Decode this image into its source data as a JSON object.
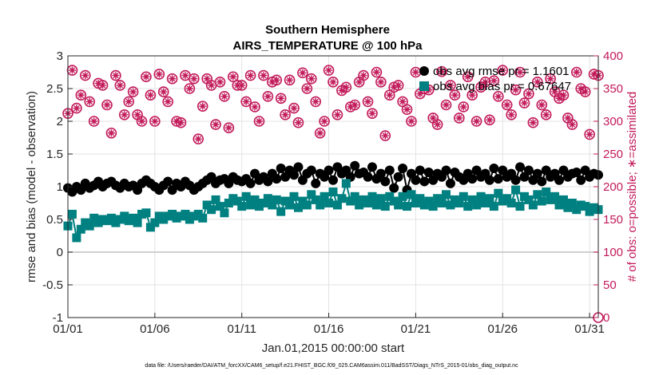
{
  "chart_data": {
    "type": "line",
    "title": "Southern Hemisphere",
    "subtitle": "AIRS_TEMPERATURE @ 100 hPa",
    "xlabel": "Jan.01,2015 00:00:00 start",
    "ylabel_left": "rmse and bias (model - observation)",
    "ylabel_right": "# of obs: o=possible; ∗=assimilated",
    "footnote": "data file: /Users/raeder/DAI/ATM_forcXX/CAM6_setup/f.e21.FHIST_BGC.f09_025.CAM6assim.011/BadSST/Diags_NTrS_2015-01/obs_diag_output.nc",
    "x_ticks": [
      "01/01",
      "01/06",
      "01/11",
      "01/16",
      "01/21",
      "01/26",
      "01/31"
    ],
    "x_tick_days": [
      0,
      5,
      10,
      15,
      20,
      25,
      30
    ],
    "xlim_days": [
      0,
      30.5
    ],
    "ylim_left": [
      -1,
      3
    ],
    "y_ticks_left": [
      "-1",
      "-0.5",
      "0",
      "0.5",
      "1",
      "1.5",
      "2",
      "2.5",
      "3"
    ],
    "ylim_right": [
      0,
      400
    ],
    "y_ticks_right": [
      "0",
      "50",
      "100",
      "150",
      "200",
      "250",
      "300",
      "350",
      "400"
    ],
    "grid": true,
    "legend_position": "top-right",
    "colors": {
      "rmse": "#000000",
      "bias": "#008080",
      "obs": "#c21a5a",
      "grid": "#e3e3e3",
      "zero_line": "#bfbfbf"
    },
    "series": [
      {
        "name": "obs avg rmse pr = 1.1601",
        "marker": "circle",
        "x_days": [
          0,
          0.25,
          0.5,
          0.75,
          1,
          1.25,
          1.5,
          1.75,
          2,
          2.25,
          2.5,
          2.75,
          3,
          3.25,
          3.5,
          3.75,
          4,
          4.25,
          4.5,
          4.75,
          5,
          5.25,
          5.5,
          5.75,
          6,
          6.25,
          6.5,
          6.75,
          7,
          7.25,
          7.5,
          7.75,
          8,
          8.25,
          8.5,
          8.75,
          9,
          9.25,
          9.5,
          9.75,
          10,
          10.25,
          10.5,
          10.75,
          11,
          11.25,
          11.5,
          11.75,
          12,
          12.25,
          12.5,
          12.75,
          13,
          13.25,
          13.5,
          13.75,
          14,
          14.25,
          14.5,
          14.75,
          15,
          15.25,
          15.5,
          15.75,
          16,
          16.25,
          16.5,
          16.75,
          17,
          17.25,
          17.5,
          17.75,
          18,
          18.25,
          18.5,
          18.75,
          19,
          19.25,
          19.5,
          19.75,
          20,
          20.25,
          20.5,
          20.75,
          21,
          21.25,
          21.5,
          21.75,
          22,
          22.25,
          22.5,
          22.75,
          23,
          23.25,
          23.5,
          23.75,
          24,
          24.25,
          24.5,
          24.75,
          25,
          25.25,
          25.5,
          25.75,
          26,
          26.25,
          26.5,
          26.75,
          27,
          27.25,
          27.5,
          27.75,
          28,
          28.25,
          28.5,
          28.75,
          29,
          29.25,
          29.5,
          29.75,
          30,
          30.25,
          30.5
        ],
        "values": [
          0.98,
          0.92,
          1.0,
          0.95,
          1.05,
          0.98,
          1.02,
          1.08,
          1.0,
          1.05,
          1.08,
          1.02,
          0.98,
          1.05,
          1.0,
          1.02,
          0.95,
          1.05,
          1.1,
          1.05,
          1.0,
          0.95,
          1.02,
          1.08,
          0.95,
          1.05,
          1.0,
          1.08,
          1.02,
          0.95,
          1.0,
          1.05,
          1.1,
          1.15,
          1.05,
          1.1,
          1.12,
          1.05,
          1.15,
          1.1,
          1.08,
          1.12,
          1.05,
          1.2,
          1.1,
          1.15,
          1.08,
          1.2,
          1.12,
          1.28,
          1.15,
          1.25,
          1.18,
          1.3,
          1.1,
          1.2,
          1.25,
          1.05,
          1.2,
          1.15,
          1.25,
          1.1,
          1.3,
          1.2,
          1.25,
          1.15,
          1.32,
          1.2,
          1.22,
          1.15,
          1.3,
          1.12,
          1.2,
          1.08,
          1.25,
          0.98,
          1.15,
          1.28,
          0.95,
          1.2,
          1.1,
          1.25,
          1.08,
          1.22,
          1.1,
          1.2,
          1.15,
          1.25,
          1.05,
          1.22,
          1.15,
          1.1,
          1.2,
          1.12,
          1.25,
          1.15,
          1.2,
          1.1,
          1.28,
          1.12,
          1.25,
          1.15,
          1.2,
          1.1,
          1.3,
          1.15,
          1.25,
          1.1,
          1.2,
          1.08,
          1.25,
          1.15,
          1.2,
          1.1,
          1.25,
          1.15,
          1.2,
          1.22,
          1.1,
          1.25,
          1.15,
          1.2,
          1.18
        ]
      },
      {
        "name": "obs avg bias pr = 0.67647",
        "marker": "square",
        "x_days": [
          0,
          0.25,
          0.5,
          0.75,
          1,
          1.25,
          1.5,
          1.75,
          2,
          2.25,
          2.5,
          2.75,
          3,
          3.25,
          3.5,
          3.75,
          4,
          4.25,
          4.5,
          4.75,
          5,
          5.25,
          5.5,
          5.75,
          6,
          6.25,
          6.5,
          6.75,
          7,
          7.25,
          7.5,
          7.75,
          8,
          8.25,
          8.5,
          8.75,
          9,
          9.25,
          9.5,
          9.75,
          10,
          10.25,
          10.5,
          10.75,
          11,
          11.25,
          11.5,
          11.75,
          12,
          12.25,
          12.5,
          12.75,
          13,
          13.25,
          13.5,
          13.75,
          14,
          14.25,
          14.5,
          14.75,
          15,
          15.25,
          15.5,
          15.75,
          16,
          16.25,
          16.5,
          16.75,
          17,
          17.25,
          17.5,
          17.75,
          18,
          18.25,
          18.5,
          18.75,
          19,
          19.25,
          19.5,
          19.75,
          20,
          20.25,
          20.5,
          20.75,
          21,
          21.25,
          21.5,
          21.75,
          22,
          22.25,
          22.5,
          22.75,
          23,
          23.25,
          23.5,
          23.75,
          24,
          24.25,
          24.5,
          24.75,
          25,
          25.25,
          25.5,
          25.75,
          26,
          26.25,
          26.5,
          26.75,
          27,
          27.25,
          27.5,
          27.75,
          28,
          28.25,
          28.5,
          28.75,
          29,
          29.25,
          29.5,
          29.75,
          30,
          30.25,
          30.5
        ],
        "values": [
          0.4,
          0.58,
          0.22,
          0.35,
          0.45,
          0.4,
          0.52,
          0.45,
          0.5,
          0.48,
          0.52,
          0.45,
          0.5,
          0.55,
          0.48,
          0.52,
          0.45,
          0.58,
          0.6,
          0.38,
          0.45,
          0.55,
          0.5,
          0.55,
          0.58,
          0.52,
          0.55,
          0.58,
          0.5,
          0.55,
          0.58,
          0.52,
          0.72,
          0.65,
          0.8,
          0.7,
          0.6,
          0.75,
          0.82,
          0.78,
          0.7,
          0.85,
          0.72,
          0.8,
          0.7,
          0.75,
          0.82,
          0.72,
          0.8,
          0.62,
          0.78,
          0.72,
          0.85,
          0.68,
          0.78,
          0.72,
          0.88,
          0.8,
          0.72,
          0.85,
          0.75,
          0.92,
          0.72,
          0.82,
          1.05,
          0.78,
          0.85,
          0.72,
          0.8,
          0.75,
          0.85,
          0.72,
          0.82,
          0.7,
          0.85,
          0.78,
          0.72,
          0.85,
          0.7,
          0.88,
          0.75,
          0.82,
          0.72,
          0.78,
          0.7,
          0.82,
          0.75,
          0.88,
          0.72,
          0.8,
          0.75,
          0.85,
          0.7,
          0.8,
          0.72,
          0.85,
          0.75,
          0.82,
          0.7,
          0.9,
          0.78,
          0.82,
          0.75,
          0.95,
          0.7,
          0.85,
          0.8,
          0.72,
          0.88,
          0.78,
          0.92,
          0.8,
          0.85,
          0.72,
          0.8,
          0.68,
          0.75,
          0.65,
          0.72,
          0.7,
          0.62,
          0.68,
          0.65
        ]
      },
      {
        "name": "# of obs possible",
        "marker": "circle-open",
        "axis": "right",
        "x_days": [
          0,
          0.25,
          0.5,
          0.75,
          1,
          1.25,
          1.5,
          1.75,
          2,
          2.25,
          2.5,
          2.75,
          3,
          3.25,
          3.5,
          3.75,
          4,
          4.25,
          4.5,
          4.75,
          5,
          5.25,
          5.5,
          5.75,
          6,
          6.25,
          6.5,
          6.75,
          7,
          7.25,
          7.5,
          7.75,
          8,
          8.25,
          8.5,
          8.75,
          9,
          9.25,
          9.5,
          9.75,
          10,
          10.25,
          10.5,
          10.75,
          11,
          11.25,
          11.5,
          11.75,
          12,
          12.25,
          12.5,
          12.75,
          13,
          13.25,
          13.5,
          13.75,
          14,
          14.25,
          14.5,
          14.75,
          15,
          15.25,
          15.5,
          15.75,
          16,
          16.25,
          16.5,
          16.75,
          17,
          17.25,
          17.5,
          17.75,
          18,
          18.25,
          18.5,
          18.75,
          19,
          19.25,
          19.5,
          19.75,
          20,
          20.25,
          20.5,
          20.75,
          21,
          21.25,
          21.5,
          21.75,
          22,
          22.25,
          22.5,
          22.75,
          23,
          23.25,
          23.5,
          23.75,
          24,
          24.25,
          24.5,
          24.75,
          25,
          25.25,
          25.5,
          25.75,
          26,
          26.25,
          26.5,
          26.75,
          27,
          27.25,
          27.5,
          27.75,
          28,
          28.25,
          28.5,
          28.75,
          29,
          29.25,
          29.5,
          29.75,
          30,
          30.25,
          30.5
        ],
        "values": [
          312,
          378,
          320,
          340,
          370,
          330,
          300,
          358,
          355,
          325,
          282,
          370,
          355,
          310,
          330,
          345,
          310,
          300,
          368,
          340,
          300,
          372,
          345,
          330,
          365,
          300,
          298,
          370,
          350,
          365,
          273,
          323,
          365,
          355,
          295,
          360,
          338,
          290,
          368,
          355,
          355,
          330,
          370,
          322,
          300,
          370,
          338,
          360,
          363,
          335,
          310,
          363,
          320,
          298,
          374,
          350,
          365,
          330,
          282,
          300,
          378,
          360,
          310,
          347,
          352,
          322,
          325,
          360,
          370,
          330,
          312,
          375,
          360,
          278,
          340,
          352,
          355,
          330,
          318,
          300,
          375,
          342,
          350,
          348,
          305,
          295,
          376,
          325,
          355,
          340,
          305,
          322,
          368,
          340,
          300,
          352,
          360,
          302,
          362,
          338,
          378,
          325,
          310,
          348,
          375,
          328,
          342,
          298,
          360,
          325,
          310,
          365,
          345,
          335,
          340,
          305,
          295,
          375,
          350,
          345,
          280,
          372,
          370
        ]
      },
      {
        "name": "# of obs assimilated",
        "marker": "asterisk",
        "axis": "right",
        "note": "overlaps possible counts",
        "values_same_as_possible": true
      }
    ]
  }
}
